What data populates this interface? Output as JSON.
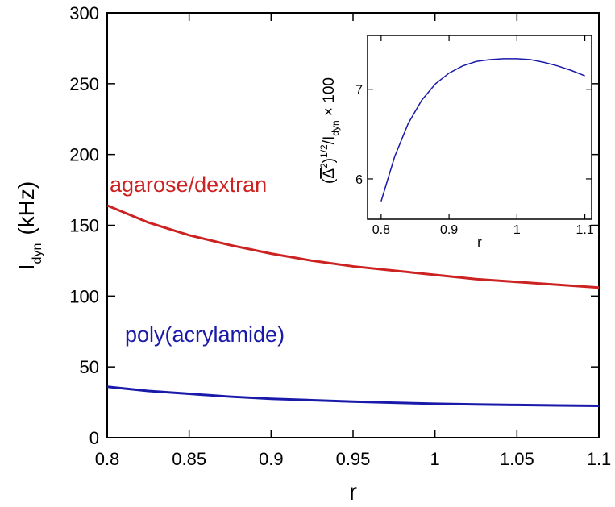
{
  "chart_data": [
    {
      "type": "line",
      "xlabel": "r",
      "ylabel": "I",
      "ylabel_subscript": "dyn",
      "ylabel_unit": "(kHz)",
      "xlim": [
        0.8,
        1.1
      ],
      "ylim": [
        0,
        300
      ],
      "x_ticks": [
        0.8,
        0.85,
        0.9,
        0.95,
        1,
        1.05,
        1.1
      ],
      "x_tick_labels": [
        "0.8",
        "0.85",
        "0.9",
        "0.95",
        "1",
        "1.05",
        "1.1"
      ],
      "y_ticks": [
        0,
        50,
        100,
        150,
        200,
        250,
        300
      ],
      "y_tick_labels": [
        "0",
        "50",
        "100",
        "150",
        "200",
        "250",
        "300"
      ],
      "grid": false,
      "legend": "inline labels",
      "series": [
        {
          "name": "agarose/dextran",
          "color": "#cc2222",
          "x": [
            0.8,
            0.825,
            0.85,
            0.875,
            0.9,
            0.925,
            0.95,
            0.975,
            1.0,
            1.025,
            1.05,
            1.075,
            1.1
          ],
          "y": [
            164,
            152,
            143,
            136,
            130,
            125,
            121,
            118,
            115,
            112,
            110,
            108,
            106
          ]
        },
        {
          "name": "poly(acrylamide)",
          "color": "#1a1aaa",
          "x": [
            0.8,
            0.825,
            0.85,
            0.875,
            0.9,
            0.925,
            0.95,
            0.975,
            1.0,
            1.025,
            1.05,
            1.075,
            1.1
          ],
          "y": [
            36,
            33,
            31,
            29,
            27.5,
            26.5,
            25.5,
            24.7,
            24,
            23.5,
            23.1,
            22.8,
            22.5
          ]
        }
      ]
    },
    {
      "type": "line",
      "xlabel": "r",
      "ylabel": "(⟨Δ²⟩)^1/2/I_dyn × 100",
      "ylabel_parts": {
        "open": "(",
        "delta": "Δ",
        "sup2": "2",
        "close": ")",
        "power": "1/2",
        "slash": "/I",
        "sub": "dyn",
        "tail": " × 100"
      },
      "xlim": [
        0.78,
        1.11
      ],
      "ylim": [
        5.55,
        7.6
      ],
      "x_ticks": [
        0.8,
        0.9,
        1,
        1.1
      ],
      "x_tick_labels": [
        "0.8",
        "0.9",
        "1",
        "1.1"
      ],
      "y_ticks": [
        6,
        7
      ],
      "y_tick_labels": [
        "6",
        "7"
      ],
      "grid": false,
      "series": [
        {
          "color": "#1a1aaa",
          "x": [
            0.8,
            0.82,
            0.84,
            0.86,
            0.88,
            0.9,
            0.92,
            0.94,
            0.96,
            0.98,
            1.0,
            1.02,
            1.04,
            1.06,
            1.08,
            1.1
          ],
          "y": [
            5.75,
            6.25,
            6.62,
            6.88,
            7.06,
            7.18,
            7.26,
            7.31,
            7.33,
            7.34,
            7.34,
            7.33,
            7.3,
            7.26,
            7.21,
            7.15
          ]
        }
      ]
    }
  ]
}
